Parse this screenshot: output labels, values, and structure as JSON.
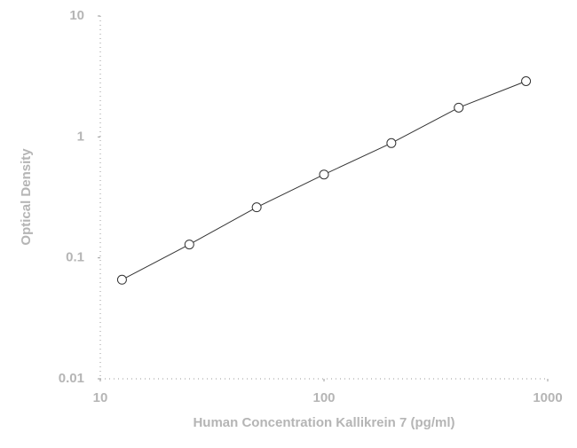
{
  "chart_data": {
    "type": "scatter",
    "xlabel": "Human Concentration Kallikrein 7 (pg/ml)",
    "ylabel": "Optical Density",
    "x": [
      12.5,
      25,
      50,
      100,
      200,
      400,
      800
    ],
    "series": [
      {
        "color": "#333333",
        "values": [
          0.066,
          0.129,
          0.262,
          0.489,
          0.889,
          1.746,
          2.89
        ]
      }
    ],
    "xscale": "log",
    "yscale": "log",
    "xlim": [
      10,
      1000
    ],
    "ylim": [
      0.01,
      10
    ],
    "xticks": [
      10,
      100,
      1000
    ],
    "yticks": [
      0.01,
      0.1,
      1,
      10
    ]
  }
}
